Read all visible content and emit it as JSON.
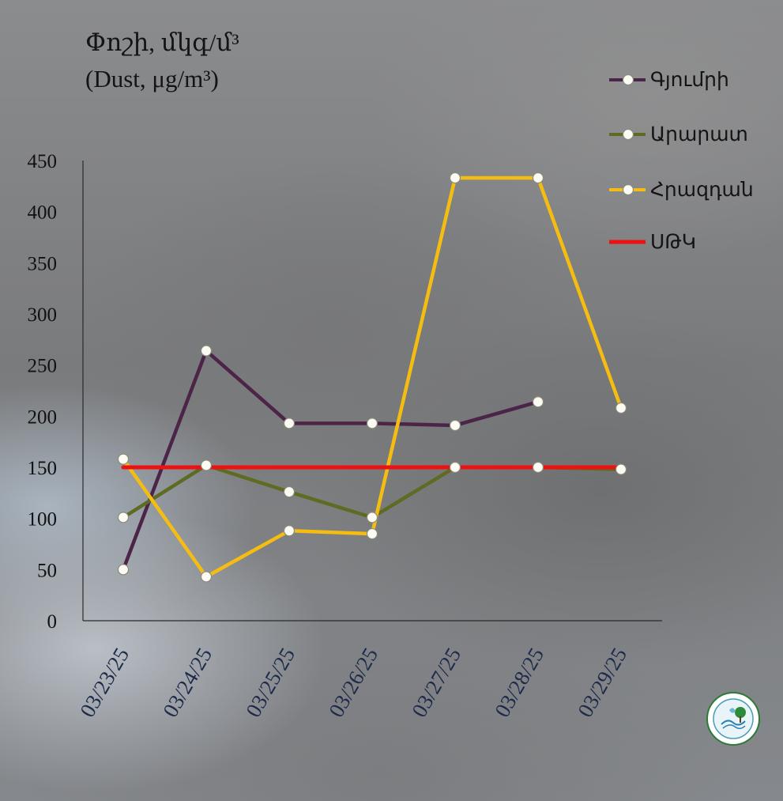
{
  "chart_data": {
    "type": "line",
    "title_line1": "Փոշի, մկգ/մ³",
    "title_line2": "(Dust, μg/m³)",
    "categories": [
      "03/23/25",
      "03/24/25",
      "03/25/25",
      "03/26/25",
      "03/27/25",
      "03/28/25",
      "03/29/25"
    ],
    "ylim": [
      0,
      450
    ],
    "yticks": [
      0,
      50,
      100,
      150,
      200,
      250,
      300,
      350,
      400,
      450
    ],
    "grid": false,
    "legend_position": "top-right",
    "series": [
      {
        "name": "Գյումրի",
        "color": "#4b2448",
        "marker": true,
        "values": [
          50,
          264,
          193,
          193,
          191,
          214,
          null
        ]
      },
      {
        "name": "Արարատ",
        "color": "#5f6b22",
        "marker": true,
        "values": [
          101,
          152,
          126,
          101,
          150,
          150,
          148
        ]
      },
      {
        "name": "Հրազդան",
        "color": "#f5bd12",
        "marker": true,
        "values": [
          158,
          43,
          88,
          85,
          433,
          433,
          208
        ]
      },
      {
        "name": "ՍԹԿ",
        "color": "#ee1111",
        "marker": false,
        "values": [
          150,
          150,
          150,
          150,
          150,
          150,
          150
        ]
      }
    ]
  }
}
